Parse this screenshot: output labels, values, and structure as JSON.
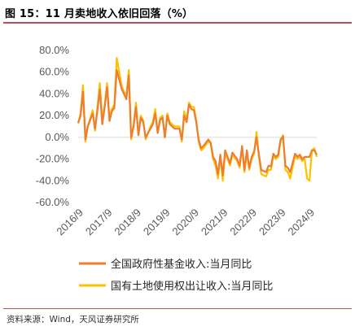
{
  "header": {
    "title": "图 15：11 月卖地收入依旧回落（%）"
  },
  "footer": {
    "source": "资料来源：Wind，天风证券研究所"
  },
  "chart_data": {
    "type": "line",
    "title": "图 15：11 月卖地收入依旧回落（%）",
    "xlabel": "",
    "ylabel": "",
    "ylim": [
      -60,
      80
    ],
    "y_ticks": [
      80,
      60,
      40,
      20,
      0,
      -20,
      -40,
      -60
    ],
    "y_tick_labels": [
      "80.0%",
      "60.0%",
      "40.0%",
      "20.0%",
      "0.0%",
      "-20.0%",
      "-40.0%",
      "-60.0%"
    ],
    "x_tick_labels": [
      "2016/9",
      "2017/9",
      "2018/9",
      "2019/9",
      "2020/9",
      "2021/9",
      "2022/9",
      "2023/9",
      "2024/9"
    ],
    "x": [
      "2016-08",
      "2016-09",
      "2016-10",
      "2016-11",
      "2016-12",
      "2017-02",
      "2017-03",
      "2017-04",
      "2017-05",
      "2017-06",
      "2017-07",
      "2017-08",
      "2017-09",
      "2017-10",
      "2017-11",
      "2017-12",
      "2018-02",
      "2018-03",
      "2018-04",
      "2018-05",
      "2018-06",
      "2018-07",
      "2018-08",
      "2018-09",
      "2018-10",
      "2018-11",
      "2018-12",
      "2019-02",
      "2019-03",
      "2019-04",
      "2019-05",
      "2019-06",
      "2019-07",
      "2019-08",
      "2019-09",
      "2019-10",
      "2019-11",
      "2019-12",
      "2020-02",
      "2020-03",
      "2020-04",
      "2020-05",
      "2020-06",
      "2020-07",
      "2020-08",
      "2020-09",
      "2020-10",
      "2020-11",
      "2020-12",
      "2021-02",
      "2021-03",
      "2021-04",
      "2021-05",
      "2021-06",
      "2021-07",
      "2021-08",
      "2021-09",
      "2021-10",
      "2021-11",
      "2021-12",
      "2022-02",
      "2022-03",
      "2022-04",
      "2022-05",
      "2022-06",
      "2022-07",
      "2022-08",
      "2022-09",
      "2022-10",
      "2022-11",
      "2022-12",
      "2023-02",
      "2023-03",
      "2023-04",
      "2023-05",
      "2023-06",
      "2023-07",
      "2023-08",
      "2023-09",
      "2023-10",
      "2023-11",
      "2023-12",
      "2024-02",
      "2024-03",
      "2024-04",
      "2024-05",
      "2024-06",
      "2024-07",
      "2024-08",
      "2024-09",
      "2024-10",
      "2024-11"
    ],
    "series": [
      {
        "name": "全国政府性基金收入:当月同比",
        "color": "#ED7D31",
        "values": [
          13,
          20,
          42,
          -2,
          10,
          22,
          8,
          25,
          44,
          12,
          28,
          46,
          15,
          24,
          27,
          62,
          45,
          40,
          35,
          57,
          0,
          10,
          28,
          2,
          18,
          14,
          0,
          8,
          12,
          22,
          4,
          16,
          18,
          0,
          20,
          12,
          10,
          8,
          8,
          -2,
          20,
          14,
          30,
          26,
          25,
          14,
          -2,
          -10,
          -8,
          -2,
          -5,
          -18,
          -22,
          -34,
          -16,
          -35,
          -12,
          -18,
          -24,
          -14,
          -20,
          -26,
          -8,
          -30,
          -12,
          -28,
          -18,
          -13,
          0,
          -16,
          -30,
          -32,
          -26,
          -27,
          -15,
          -18,
          -16,
          -2,
          1,
          -26,
          -28,
          -32,
          -15,
          -18,
          -16,
          -20,
          -18,
          -18,
          -18,
          -12,
          -12,
          -16
        ]
      },
      {
        "name": "国有土地使用权出让收入:当月同比",
        "color": "#FFC000",
        "values": [
          13,
          22,
          48,
          -4,
          10,
          25,
          6,
          28,
          50,
          16,
          30,
          50,
          18,
          26,
          30,
          73,
          48,
          42,
          38,
          62,
          -2,
          12,
          32,
          2,
          20,
          16,
          -2,
          10,
          14,
          26,
          4,
          18,
          20,
          0,
          22,
          14,
          12,
          10,
          10,
          -4,
          24,
          16,
          32,
          28,
          28,
          16,
          -4,
          -12,
          -10,
          -4,
          -6,
          -20,
          -26,
          -38,
          -18,
          -40,
          -14,
          -20,
          -26,
          -16,
          -22,
          -28,
          -10,
          -32,
          -14,
          -30,
          -20,
          -15,
          5,
          -18,
          -34,
          -36,
          -30,
          -30,
          -17,
          -20,
          -18,
          -4,
          2,
          -30,
          -32,
          -38,
          -17,
          -20,
          -18,
          -22,
          -20,
          -38,
          -40,
          -12,
          -10,
          -18
        ]
      }
    ],
    "legend": {
      "position": "bottom"
    },
    "grid": false
  }
}
